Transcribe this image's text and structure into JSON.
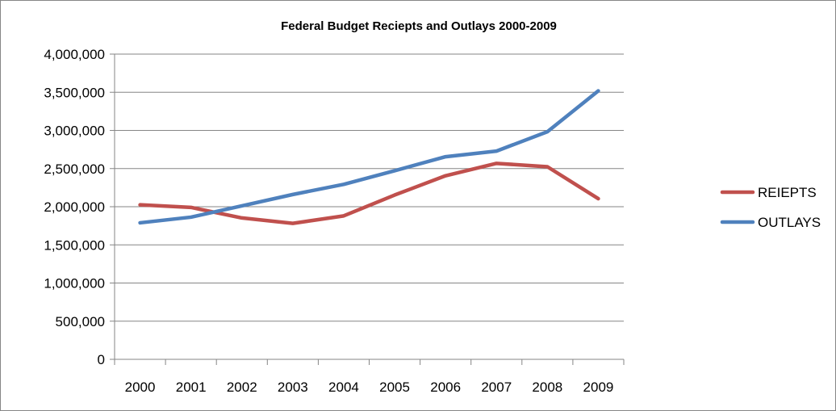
{
  "chart_data": {
    "type": "line",
    "title": "Federal Budget Reciepts and Outlays 2000-2009",
    "xlabel": "",
    "ylabel": "",
    "categories": [
      "2000",
      "2001",
      "2002",
      "2003",
      "2004",
      "2005",
      "2006",
      "2007",
      "2008",
      "2009"
    ],
    "ylim": [
      0,
      4000000
    ],
    "yticks": [
      0,
      500000,
      1000000,
      1500000,
      2000000,
      2500000,
      3000000,
      3500000,
      4000000
    ],
    "ytick_labels": [
      "0",
      "500,000",
      "1,000,000",
      "1,500,000",
      "2,000,000",
      "2,500,000",
      "3,000,000",
      "3,500,000",
      "4,000,000"
    ],
    "grid": true,
    "legend_position": "right",
    "series": [
      {
        "name": "REIEPTS",
        "color": "#c0504d",
        "values": [
          2025000,
          1991000,
          1853000,
          1782000,
          1880000,
          2153000,
          2406000,
          2568000,
          2524000,
          2105000
        ]
      },
      {
        "name": "OUTLAYS",
        "color": "#4f81bd",
        "values": [
          1789000,
          1863000,
          2011000,
          2160000,
          2293000,
          2472000,
          2655000,
          2729000,
          2983000,
          3518000
        ]
      }
    ]
  }
}
